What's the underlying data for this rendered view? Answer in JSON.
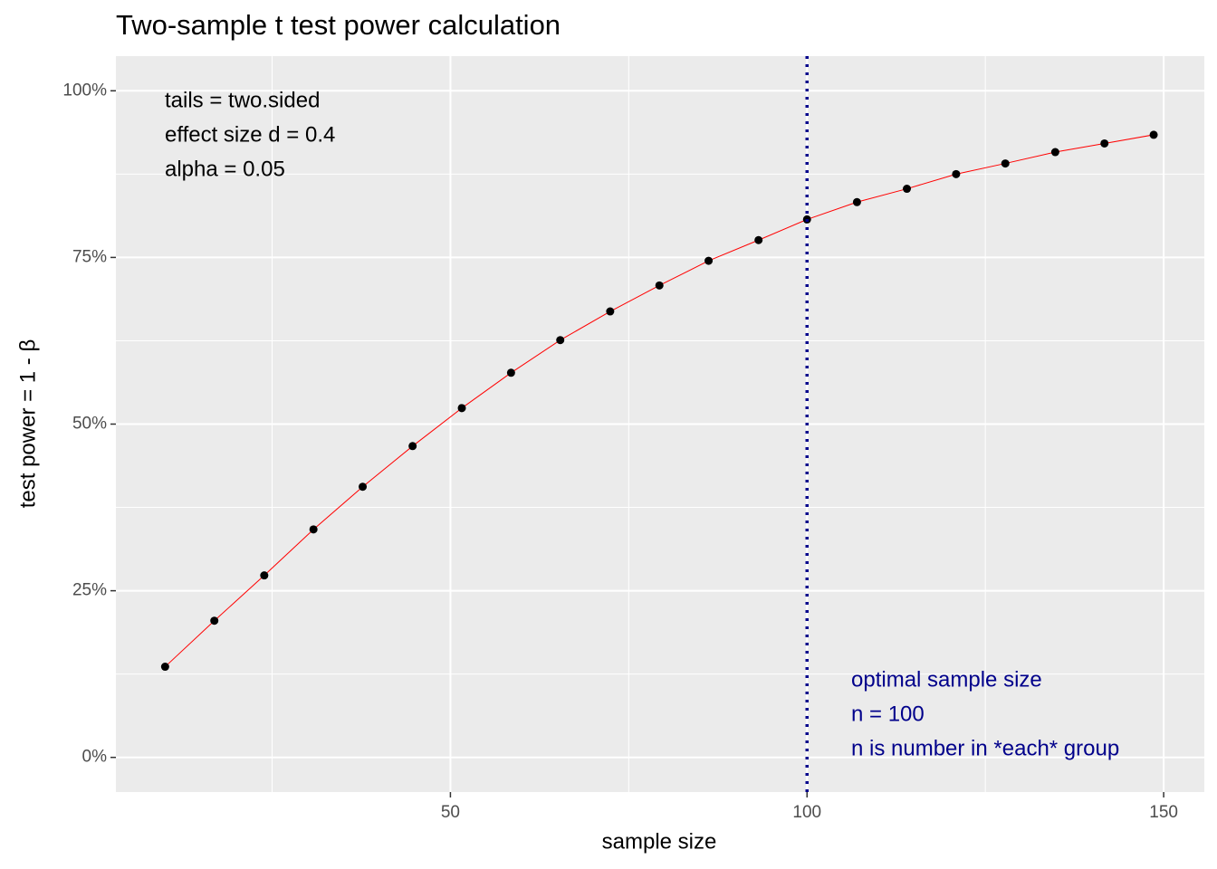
{
  "chart_data": {
    "type": "line",
    "title": "Two-sample t test power calculation",
    "x_label": "sample size",
    "y_label": "test power = 1 - β",
    "x": [
      10,
      16.9,
      23.9,
      30.8,
      37.7,
      44.7,
      51.6,
      58.5,
      65.4,
      72.4,
      79.3,
      86.2,
      93.2,
      100,
      107,
      114,
      120.9,
      127.8,
      134.8,
      141.7,
      148.6
    ],
    "series": [
      {
        "values": [
          13.6,
          20.5,
          27.3,
          34.2,
          40.6,
          46.7,
          52.4,
          57.7,
          62.6,
          66.9,
          70.8,
          74.5,
          77.6,
          80.7,
          83.3,
          85.3,
          87.5,
          89.1,
          90.8,
          92.1,
          93.4
        ],
        "color": "#ff0000",
        "marker_color": "#000000"
      }
    ],
    "xlim": [
      3.1,
      155.7
    ],
    "xticks": [
      50,
      100,
      150
    ],
    "ylim": [
      -5.2,
      105.2
    ],
    "yticks": [
      {
        "value": 0,
        "label": "0%"
      },
      {
        "value": 25,
        "label": "25%"
      },
      {
        "value": 50,
        "label": "50%"
      },
      {
        "value": 75,
        "label": "75%"
      },
      {
        "value": 100,
        "label": "100%"
      }
    ],
    "grid": true,
    "vline": {
      "x": 100,
      "color": "#00008b"
    },
    "annotations": [
      {
        "lines": [
          "tails = two.sided",
          "effect size d = 0.4",
          "alpha = 0.05"
        ],
        "color": "#000000"
      },
      {
        "lines": [
          "optimal sample size",
          "n = 100",
          "n is number in *each* group"
        ],
        "color": "#00008b"
      }
    ]
  }
}
